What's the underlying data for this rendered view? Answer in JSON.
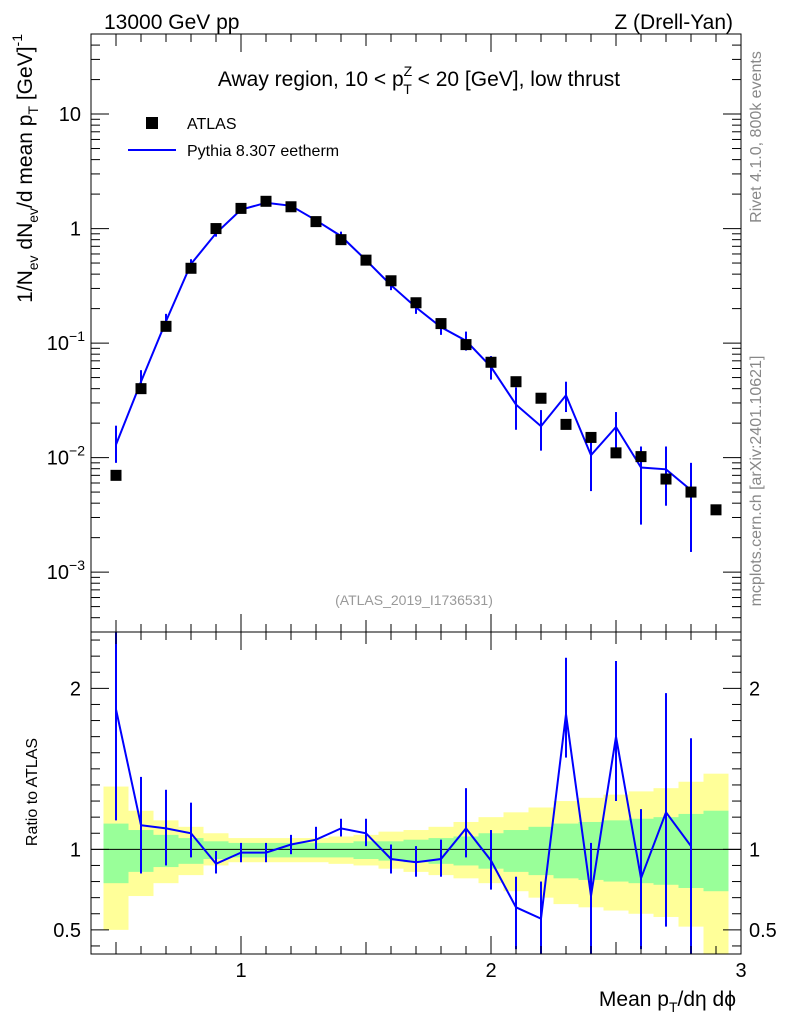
{
  "header": {
    "energy_label": "13000 GeV pp",
    "process_label": "Z (Drell-Yan)"
  },
  "side_labels": {
    "rivet": "Rivet 4.1.0,  800k events",
    "mcplots": "mcplots.cern.ch [arXiv:2401.10621]"
  },
  "chart_data": [
    {
      "type": "scatter",
      "panel": "main",
      "title": "Away region, 10 < p_T^Z < 20 [GeV], low thrust",
      "title_parts": {
        "pre": "Away region, 10 < p",
        "sup": "Z",
        "sub": "T",
        "post": " < 20 [GeV], low thrust"
      },
      "analysis_id": "(ATLAS_2019_I1736531)",
      "ylabel": "1/N_ev dN_ev/d mean p_T [GeV]^-1",
      "yscale": "log",
      "xlim": [
        0.4,
        3.0
      ],
      "ylim": [
        0.0003,
        50
      ],
      "y_ticks": [
        0.001,
        0.01,
        0.1,
        1,
        10
      ],
      "y_tick_labels": [
        {
          "base": "10",
          "exp": "−3"
        },
        {
          "base": "10",
          "exp": "−2"
        },
        {
          "base": "10",
          "exp": "−1"
        },
        {
          "base": "1",
          "exp": ""
        },
        {
          "base": "10",
          "exp": ""
        }
      ],
      "legend_position": "top-left",
      "series": [
        {
          "name": "ATLAS",
          "style": "markers",
          "color": "#000000",
          "x": [
            0.5,
            0.6,
            0.7,
            0.8,
            0.9,
            1.0,
            1.1,
            1.2,
            1.3,
            1.4,
            1.5,
            1.6,
            1.7,
            1.8,
            1.9,
            2.0,
            2.1,
            2.2,
            2.3,
            2.4,
            2.5,
            2.6,
            2.7,
            2.8,
            2.9
          ],
          "values": [
            0.007,
            0.04,
            0.14,
            0.45,
            1.0,
            1.5,
            1.73,
            1.55,
            1.15,
            0.8,
            0.53,
            0.35,
            0.225,
            0.148,
            0.097,
            0.068,
            0.046,
            0.033,
            0.0195,
            0.015,
            0.011,
            0.0102,
            0.0065,
            0.005,
            0.0035
          ]
        },
        {
          "name": "Pythia 8.307 eetherm",
          "style": "line",
          "color": "#0000ff",
          "x": [
            0.5,
            0.6,
            0.7,
            0.8,
            0.9,
            1.0,
            1.1,
            1.2,
            1.3,
            1.4,
            1.5,
            1.6,
            1.7,
            1.8,
            1.9,
            2.0,
            2.1,
            2.2,
            2.3,
            2.4,
            2.5,
            2.6,
            2.7,
            2.8
          ],
          "values": [
            0.013,
            0.046,
            0.155,
            0.49,
            0.91,
            1.46,
            1.68,
            1.58,
            1.18,
            0.86,
            0.53,
            0.32,
            0.205,
            0.138,
            0.105,
            0.062,
            0.029,
            0.0188,
            0.035,
            0.0105,
            0.0185,
            0.0082,
            0.0079,
            0.0052
          ],
          "err_low": [
            0.009,
            0.038,
            0.135,
            0.46,
            0.85,
            1.38,
            1.6,
            1.5,
            1.1,
            0.79,
            0.49,
            0.29,
            0.18,
            0.118,
            0.086,
            0.048,
            0.0175,
            0.0115,
            0.025,
            0.0051,
            0.0115,
            0.0026,
            0.0038,
            0.0015
          ],
          "err_high": [
            0.019,
            0.058,
            0.18,
            0.54,
            0.97,
            1.54,
            1.76,
            1.66,
            1.26,
            0.94,
            0.58,
            0.355,
            0.232,
            0.16,
            0.126,
            0.077,
            0.041,
            0.026,
            0.046,
            0.0165,
            0.025,
            0.0125,
            0.0125,
            0.009
          ]
        }
      ]
    },
    {
      "type": "line",
      "panel": "ratio",
      "xlabel": "Mean p_T/dη dϕ",
      "xlabel_parts": {
        "pre": "Mean p",
        "sub": "T",
        "post": "/dη dϕ"
      },
      "ylabel": "Ratio to ATLAS",
      "xlim": [
        0.4,
        3.0
      ],
      "ylim": [
        0.35,
        2.35
      ],
      "x_ticks": [
        1,
        2,
        3
      ],
      "x_tick_labels": [
        "1",
        "2",
        "3"
      ],
      "y_ticks": [
        0.5,
        1,
        2
      ],
      "y_tick_labels": [
        "0.5",
        "1",
        "2"
      ],
      "reference_line": 1,
      "bands": {
        "edges": [
          0.45,
          0.55,
          0.65,
          0.75,
          0.85,
          0.95,
          1.05,
          1.15,
          1.25,
          1.35,
          1.45,
          1.55,
          1.65,
          1.75,
          1.85,
          1.95,
          2.05,
          2.15,
          2.25,
          2.35,
          2.45,
          2.55,
          2.65,
          2.75,
          2.85,
          2.95
        ],
        "green_low": [
          0.79,
          0.86,
          0.89,
          0.91,
          0.94,
          0.95,
          0.95,
          0.95,
          0.95,
          0.95,
          0.94,
          0.93,
          0.92,
          0.91,
          0.9,
          0.88,
          0.86,
          0.84,
          0.82,
          0.81,
          0.8,
          0.79,
          0.78,
          0.76,
          0.74
        ],
        "green_high": [
          1.16,
          1.12,
          1.09,
          1.07,
          1.05,
          1.04,
          1.04,
          1.04,
          1.04,
          1.04,
          1.05,
          1.05,
          1.06,
          1.07,
          1.08,
          1.1,
          1.12,
          1.14,
          1.16,
          1.17,
          1.18,
          1.19,
          1.2,
          1.22,
          1.24
        ],
        "yellow_low": [
          0.5,
          0.71,
          0.79,
          0.84,
          0.9,
          0.92,
          0.92,
          0.92,
          0.92,
          0.91,
          0.9,
          0.88,
          0.86,
          0.84,
          0.82,
          0.79,
          0.74,
          0.7,
          0.66,
          0.64,
          0.62,
          0.6,
          0.58,
          0.52,
          0.35
        ],
        "yellow_high": [
          1.39,
          1.24,
          1.18,
          1.14,
          1.1,
          1.07,
          1.07,
          1.07,
          1.07,
          1.08,
          1.09,
          1.11,
          1.12,
          1.14,
          1.17,
          1.2,
          1.23,
          1.26,
          1.3,
          1.32,
          1.34,
          1.36,
          1.38,
          1.42,
          1.47
        ]
      },
      "series": [
        {
          "name": "Pythia 8.307 eetherm / ATLAS",
          "color": "#0000ff",
          "x": [
            0.5,
            0.6,
            0.7,
            0.8,
            0.9,
            1.0,
            1.1,
            1.2,
            1.3,
            1.4,
            1.5,
            1.6,
            1.7,
            1.8,
            1.9,
            2.0,
            2.1,
            2.2,
            2.3,
            2.4,
            2.5,
            2.6,
            2.7,
            2.8
          ],
          "values": [
            1.87,
            1.15,
            1.13,
            1.1,
            0.91,
            0.98,
            0.98,
            1.03,
            1.06,
            1.13,
            1.1,
            0.94,
            0.92,
            0.94,
            1.13,
            0.93,
            0.64,
            0.57,
            1.84,
            0.71,
            1.7,
            0.82,
            1.23,
            1.02
          ],
          "err_low": [
            1.18,
            0.85,
            0.9,
            0.95,
            0.85,
            0.92,
            0.92,
            0.97,
            1.0,
            1.08,
            1.02,
            0.85,
            0.83,
            0.83,
            0.95,
            0.75,
            0.38,
            0.35,
            1.57,
            0.35,
            1.3,
            0.38,
            0.52,
            0.35
          ],
          "err_high": [
            2.35,
            1.45,
            1.37,
            1.29,
            0.99,
            1.04,
            1.04,
            1.09,
            1.14,
            1.19,
            1.19,
            1.03,
            1.02,
            1.06,
            1.38,
            1.12,
            0.83,
            0.8,
            2.19,
            1.04,
            2.17,
            1.25,
            1.97,
            1.69
          ]
        }
      ]
    }
  ]
}
